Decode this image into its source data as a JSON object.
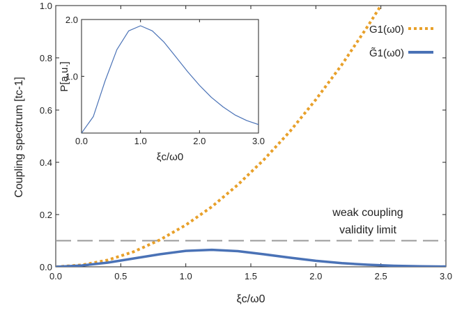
{
  "chart_data": [
    {
      "type": "line",
      "xlabel": "ξc/ω0",
      "ylabel": "Coupling spectrum [tc-1]",
      "xlim": [
        0,
        3
      ],
      "ylim": [
        0,
        1
      ],
      "x_ticks": [
        "0.0",
        "0.5",
        "1.0",
        "1.5",
        "2.0",
        "2.5",
        "3.0"
      ],
      "y_ticks": [
        "0.0",
        "0.2",
        "0.4",
        "0.6",
        "0.8",
        "1.0"
      ],
      "legend_position": "top-right",
      "series": [
        {
          "name": "G1(ω0)",
          "style": "dotted",
          "color": "#E8A02A",
          "x": [
            0,
            0.2,
            0.4,
            0.6,
            0.8,
            1.0,
            1.2,
            1.4,
            1.6,
            1.8,
            2.0,
            2.2,
            2.4,
            2.5
          ],
          "y": [
            0,
            0.007,
            0.026,
            0.058,
            0.103,
            0.16,
            0.23,
            0.314,
            0.41,
            0.518,
            0.64,
            0.774,
            0.922,
            1.0
          ]
        },
        {
          "name": "G̃1(ω0)",
          "style": "solid",
          "color": "#4A72B6",
          "x": [
            0,
            0.2,
            0.4,
            0.6,
            0.8,
            1.0,
            1.2,
            1.4,
            1.6,
            1.8,
            2.0,
            2.2,
            2.4,
            2.6,
            2.8,
            3.0
          ],
          "y": [
            0,
            0.005,
            0.016,
            0.032,
            0.048,
            0.061,
            0.065,
            0.06,
            0.048,
            0.035,
            0.023,
            0.014,
            0.008,
            0.004,
            0.002,
            0.001
          ]
        },
        {
          "name": "",
          "style": "dashed",
          "color": "#999999",
          "x": [
            0,
            3
          ],
          "y": [
            0.1,
            0.1
          ]
        }
      ],
      "annotations": [
        "weak coupling",
        "validity limit"
      ]
    },
    {
      "type": "line",
      "xlabel": "ξc/ω0",
      "ylabel": "P[a.u.]",
      "xlim": [
        0,
        3
      ],
      "ylim": [
        0,
        2
      ],
      "x_ticks": [
        "0.0",
        "1.0",
        "2.0",
        "3.0"
      ],
      "y_ticks": [
        "1.0",
        "2.0"
      ],
      "series": [
        {
          "name": "",
          "color": "#4A72B6",
          "x": [
            0,
            0.2,
            0.4,
            0.6,
            0.8,
            1.0,
            1.2,
            1.4,
            1.6,
            1.8,
            2.0,
            2.2,
            2.4,
            2.6,
            2.8,
            3.0
          ],
          "y": [
            0,
            0.29,
            0.92,
            1.47,
            1.8,
            1.89,
            1.8,
            1.6,
            1.34,
            1.08,
            0.84,
            0.63,
            0.46,
            0.32,
            0.22,
            0.15
          ]
        }
      ]
    }
  ]
}
